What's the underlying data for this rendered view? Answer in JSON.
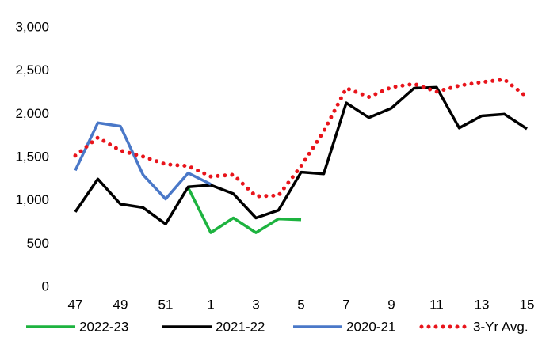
{
  "chart_data": {
    "type": "line",
    "categories": [
      "47",
      null,
      "49",
      null,
      "51",
      null,
      "1",
      null,
      "3",
      null,
      "5",
      null,
      "7",
      null,
      "9",
      null,
      "11",
      null,
      "13",
      null,
      "15"
    ],
    "series": [
      {
        "name": "2022-23",
        "color": "#1db33f",
        "style": "solid",
        "values": [
          null,
          null,
          null,
          null,
          null,
          1150,
          630,
          800,
          630,
          790,
          780,
          null,
          null,
          null,
          null,
          null,
          null,
          null,
          null,
          null,
          null
        ]
      },
      {
        "name": "2021-22",
        "color": "#000000",
        "style": "solid",
        "values": [
          870,
          1250,
          960,
          920,
          730,
          1160,
          1180,
          1080,
          800,
          890,
          1330,
          1310,
          2130,
          1960,
          2070,
          2300,
          2310,
          1840,
          1980,
          2000,
          1830
        ]
      },
      {
        "name": "2020-21",
        "color": "#4a78c8",
        "style": "solid",
        "values": [
          1350,
          1900,
          1860,
          1300,
          1020,
          1320,
          1190,
          null,
          null,
          null,
          null,
          null,
          null,
          null,
          null,
          null,
          null,
          null,
          null,
          null,
          null
        ]
      },
      {
        "name": "3-Yr Avg.",
        "color": "#e8141b",
        "style": "dotted",
        "values": [
          1520,
          1730,
          1580,
          1510,
          1420,
          1400,
          1280,
          1300,
          1050,
          1060,
          1400,
          1800,
          2300,
          2200,
          2310,
          2350,
          2260,
          2330,
          2370,
          2400,
          2200
        ]
      }
    ],
    "ylim": [
      0,
      3000
    ],
    "yticks": [
      0,
      {
        "value": 500,
        "label": "500"
      },
      {
        "value": 1000,
        "label": "1,000"
      },
      {
        "value": 1500,
        "label": "1,500"
      },
      {
        "value": 2000,
        "label": "2,000"
      },
      {
        "value": 2500,
        "label": "2,500"
      },
      {
        "value": 3000,
        "label": "3,000"
      }
    ],
    "grid": false
  }
}
